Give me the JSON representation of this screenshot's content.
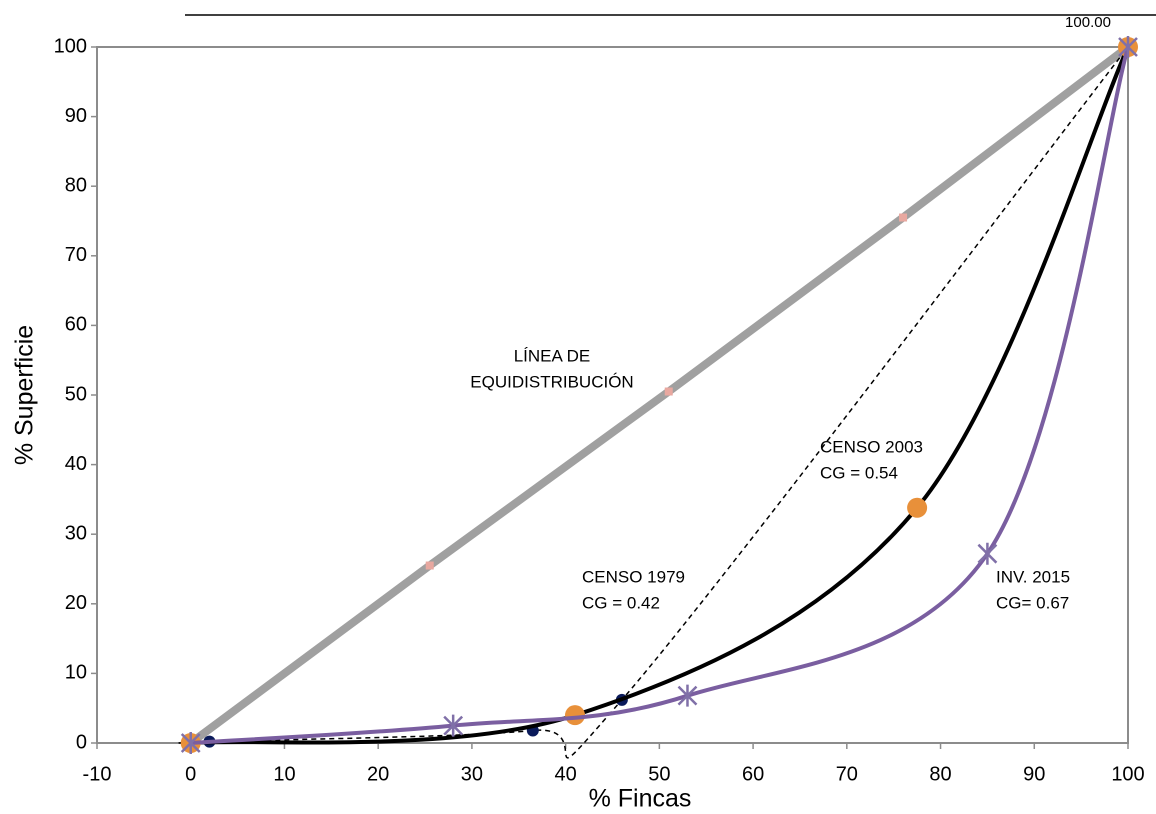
{
  "chart_data": {
    "type": "line",
    "x_label": "% Fincas",
    "y_label": "% Superficie",
    "xlim": [
      -10,
      100
    ],
    "xticks": [
      -10,
      0,
      10,
      20,
      30,
      40,
      50,
      60,
      70,
      80,
      90,
      100
    ],
    "ylim": [
      0,
      100
    ],
    "yticks": [
      0,
      10,
      20,
      30,
      40,
      50,
      60,
      70,
      80,
      90,
      100
    ],
    "grid": false,
    "legend": false,
    "series": [
      {
        "name": "LÍNEA DE",
        "note": "EQUIDISTRIBUCIÓN",
        "color": "#a0a0a0",
        "marker": "square",
        "marker_color": "#e8a8a0",
        "smooth": false,
        "dash": false,
        "x": [
          0,
          25.5,
          51,
          76,
          100
        ],
        "values": [
          0,
          25.5,
          50.5,
          75.5,
          100
        ]
      },
      {
        "name": "CENSO 1979",
        "note": "CG = 0.42",
        "color": "#000000",
        "marker": "circle",
        "marker_color": "#0a1a5a",
        "smooth": true,
        "dash": true,
        "x": [
          0,
          2,
          36.5,
          46,
          100
        ],
        "values": [
          0,
          0.2,
          1.8,
          6.2,
          100
        ]
      },
      {
        "name": "CENSO 2003",
        "note": "CG = 0.54",
        "color": "#000000",
        "marker": "circle",
        "marker_color": "#e8903a",
        "smooth": true,
        "dash": false,
        "x": [
          0,
          41,
          77.5,
          100
        ],
        "values": [
          0,
          4,
          33.8,
          100
        ],
        "value_labels": [
          null,
          null,
          null,
          "100.00"
        ]
      },
      {
        "name": "INV. 2015",
        "note": "CG= 0.67",
        "color": "#7a5ea0",
        "marker": "asterisk",
        "marker_color": "#8070a8",
        "smooth": true,
        "dash": false,
        "x": [
          0,
          28,
          53,
          85,
          100
        ],
        "values": [
          0,
          2.5,
          6.8,
          27.2,
          100
        ]
      }
    ]
  }
}
